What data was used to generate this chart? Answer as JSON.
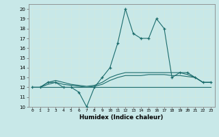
{
  "xlabel": "Humidex (Indice chaleur)",
  "xlim": [
    -0.5,
    23.5
  ],
  "ylim": [
    10,
    20.5
  ],
  "yticks": [
    10,
    11,
    12,
    13,
    14,
    15,
    16,
    17,
    18,
    19,
    20
  ],
  "xticks": [
    0,
    1,
    2,
    3,
    4,
    5,
    6,
    7,
    8,
    9,
    10,
    11,
    12,
    13,
    14,
    15,
    16,
    17,
    18,
    19,
    20,
    21,
    22,
    23
  ],
  "bg_color": "#c8e8e8",
  "line_color": "#1a6b6b",
  "grid_color": "#d0e8e0",
  "series_main": [
    12,
    12,
    12.5,
    12.5,
    12,
    12,
    11.5,
    10,
    12,
    13,
    14,
    16.5,
    20,
    17.5,
    17,
    17,
    19,
    18,
    13,
    13.5,
    13.5,
    13,
    12.5,
    12.5
  ],
  "series_max": [
    12,
    12,
    12.5,
    12.7,
    12.5,
    12.3,
    12.2,
    12.1,
    12.2,
    12.5,
    13,
    13.3,
    13.5,
    13.5,
    13.5,
    13.5,
    13.5,
    13.5,
    13.5,
    13.5,
    13.3,
    13,
    12.5,
    12.5
  ],
  "series_min": [
    12,
    12,
    12,
    12,
    12,
    12,
    12,
    12,
    12,
    12,
    12,
    12,
    12,
    12,
    12,
    12,
    12,
    12,
    12,
    12,
    12,
    12,
    12,
    12
  ],
  "series_avg": [
    12,
    12,
    12.3,
    12.5,
    12.3,
    12.2,
    12.1,
    12.0,
    12.1,
    12.3,
    12.7,
    13.0,
    13.2,
    13.2,
    13.2,
    13.3,
    13.3,
    13.3,
    13.2,
    13.2,
    13.1,
    13.0,
    12.5,
    12.5
  ]
}
